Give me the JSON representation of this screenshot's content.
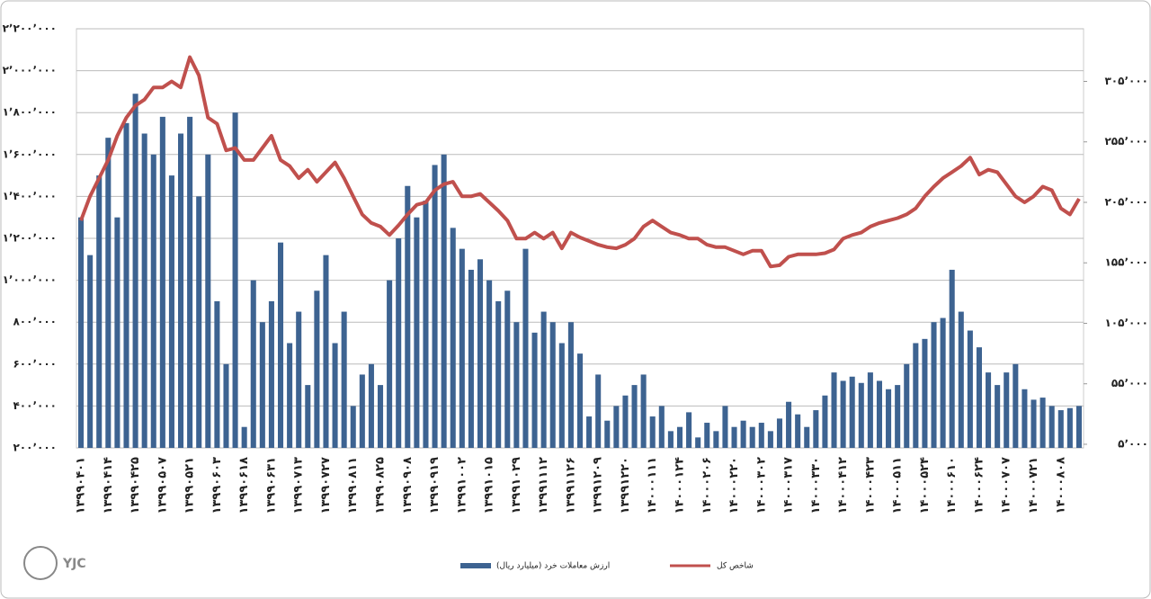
{
  "chart_data": {
    "type": "bar",
    "watermark": "YJC",
    "categories": [
      "۱۳۹۹۰۴۰۱",
      null,
      null,
      "۱۳۹۹۰۴۱۴",
      null,
      null,
      "۱۳۹۹۰۴۲۵",
      null,
      null,
      "۱۳۹۹۰۵۰۷",
      null,
      null,
      "۱۳۹۹۰۵۲۱",
      null,
      null,
      "۱۳۹۹۰۶۰۳",
      null,
      null,
      "۱۳۹۹۰۶۱۸",
      null,
      null,
      "۱۳۹۹۰۶۳۱",
      null,
      null,
      "۱۳۹۹۰۷۱۳",
      null,
      null,
      "۱۳۹۹۰۷۲۷",
      null,
      null,
      "۱۳۹۹۰۸۱۱",
      null,
      null,
      "۱۳۹۹۰۸۲۵",
      null,
      null,
      "۱۳۹۹۰۹۰۸",
      null,
      null,
      "۱۳۹۹۰۹۱۹",
      null,
      null,
      "۱۳۹۹۱۰۰۲",
      null,
      null,
      "۱۳۹۹۱۰۱۵",
      null,
      null,
      "۱۳۹۹۱۰۲۹",
      null,
      null,
      "۱۳۹۹۱۱۱۲",
      null,
      null,
      "۱۳۹۹۱۱۲۶",
      null,
      null,
      "۱۳۹۹۱۲۰۹",
      null,
      null,
      "۱۳۹۹۱۲۲۰",
      null,
      null,
      "۱۴۰۰۰۱۱۱",
      null,
      null,
      "۱۴۰۰۰۱۲۴",
      null,
      null,
      "۱۴۰۰۰۲۰۶",
      null,
      null,
      "۱۴۰۰۰۲۲۰",
      null,
      null,
      "۱۴۰۰۰۳۰۲",
      null,
      null,
      "۱۴۰۰۰۳۱۷",
      null,
      null,
      "۱۴۰۰۰۳۳۰",
      null,
      null,
      "۱۴۰۰۰۴۱۲",
      null,
      null,
      "۱۴۰۰۰۴۲۳",
      null,
      null,
      "۱۴۰۰۰۵۱۱",
      null,
      null,
      "۱۴۰۰۰۵۲۴",
      null,
      null,
      "۱۴۰۰۰۶۱۰",
      null,
      null,
      "۱۴۰۰۰۶۲۴",
      null,
      null,
      "۱۴۰۰۰۷۰۷",
      null,
      null,
      "۱۴۰۰۰۷۲۱",
      null,
      null,
      "۱۴۰۰۰۸۰۸",
      null,
      null
    ],
    "series": [
      {
        "name": "ارزش معاملات خرد (میلیارد ریال)",
        "type": "bar",
        "color": "#3d6391",
        "values": [
          1300000,
          1120000,
          1500000,
          1680000,
          1300000,
          1750000,
          1890000,
          1700000,
          1600000,
          1780000,
          1500000,
          1700000,
          1780000,
          1400000,
          1600000,
          900000,
          600000,
          1800000,
          300000,
          1000000,
          800000,
          900000,
          1180000,
          700000,
          850000,
          500000,
          950000,
          1120000,
          700000,
          850000,
          400000,
          550000,
          600000,
          500000,
          1000000,
          1200000,
          1450000,
          1300000,
          1380000,
          1550000,
          1600000,
          1250000,
          1150000,
          1050000,
          1100000,
          1000000,
          900000,
          950000,
          800000,
          1150000,
          750000,
          850000,
          800000,
          700000,
          800000,
          650000,
          350000,
          550000,
          330000,
          400000,
          450000,
          500000,
          550000,
          350000,
          400000,
          280000,
          300000,
          370000,
          250000,
          320000,
          280000,
          400000,
          300000,
          330000,
          300000,
          320000,
          280000,
          340000,
          420000,
          360000,
          300000,
          380000,
          450000,
          560000,
          520000,
          540000,
          510000,
          560000,
          520000,
          480000,
          500000,
          600000,
          700000,
          720000,
          800000,
          820000,
          1050000,
          850000,
          760000,
          680000,
          560000,
          500000,
          560000,
          600000,
          480000,
          430000,
          440000,
          400000,
          380000,
          390000,
          400000
        ]
      },
      {
        "name": "شاخص کل",
        "type": "line",
        "axis": "y2",
        "color": "#c0504d",
        "values": [
          190000,
          210000,
          225000,
          240000,
          260000,
          275000,
          285000,
          290000,
          300000,
          300000,
          305000,
          300000,
          325000,
          310000,
          275000,
          270000,
          248000,
          250000,
          240000,
          240000,
          250000,
          260000,
          240000,
          235000,
          225000,
          232000,
          222000,
          230000,
          238000,
          225000,
          210000,
          195000,
          188000,
          185000,
          178000,
          186000,
          195000,
          203000,
          205000,
          215000,
          220000,
          222000,
          210000,
          210000,
          212000,
          205000,
          198000,
          190000,
          175000,
          175000,
          180000,
          175000,
          180000,
          167000,
          180000,
          176000,
          173000,
          170000,
          168000,
          167000,
          170000,
          175000,
          185000,
          190000,
          185000,
          180000,
          178000,
          175000,
          175000,
          170000,
          168000,
          168000,
          165000,
          162000,
          165000,
          165000,
          152000,
          153000,
          160000,
          162000,
          162000,
          162000,
          163000,
          166000,
          175000,
          178000,
          180000,
          185000,
          188000,
          190000,
          192000,
          195000,
          200000,
          210000,
          218000,
          225000,
          230000,
          235000,
          242000,
          228000,
          232000,
          230000,
          220000,
          210000,
          205000,
          210000,
          218000,
          215000,
          200000,
          195000,
          208000
        ]
      }
    ],
    "ylim": [
      200000,
      2200000
    ],
    "yticks": [
      {
        "value": 200000,
        "label": "۲۰۰٬۰۰۰"
      },
      {
        "value": 400000,
        "label": "۴۰۰٬۰۰۰"
      },
      {
        "value": 600000,
        "label": "۶۰۰٬۰۰۰"
      },
      {
        "value": 800000,
        "label": "۸۰۰٬۰۰۰"
      },
      {
        "value": 1000000,
        "label": "۱٬۰۰۰٬۰۰۰"
      },
      {
        "value": 1200000,
        "label": "۱٬۲۰۰٬۰۰۰"
      },
      {
        "value": 1400000,
        "label": "۱٬۴۰۰٬۰۰۰"
      },
      {
        "value": 1600000,
        "label": "۱٬۶۰۰٬۰۰۰"
      },
      {
        "value": 1800000,
        "label": "۱٬۸۰۰٬۰۰۰"
      },
      {
        "value": 2000000,
        "label": "۲٬۰۰۰٬۰۰۰"
      },
      {
        "value": 2200000,
        "label": "۲٬۲۰۰٬۰۰۰"
      }
    ],
    "y2lim": [
      2000,
      348500
    ],
    "y2ticks": [
      {
        "value": 5000,
        "label": "۵٬۰۰۰"
      },
      {
        "value": 55000,
        "label": "۵۵٬۰۰۰"
      },
      {
        "value": 105000,
        "label": "۱۰۵٬۰۰۰"
      },
      {
        "value": 155000,
        "label": "۱۵۵٬۰۰۰"
      },
      {
        "value": 205000,
        "label": "۲۰۵٬۰۰۰"
      },
      {
        "value": 255000,
        "label": "۲۵۵٬۰۰۰"
      },
      {
        "value": 305000,
        "label": "۳۰۵٬۰۰۰"
      }
    ],
    "grid": true,
    "legend": "bottom"
  }
}
